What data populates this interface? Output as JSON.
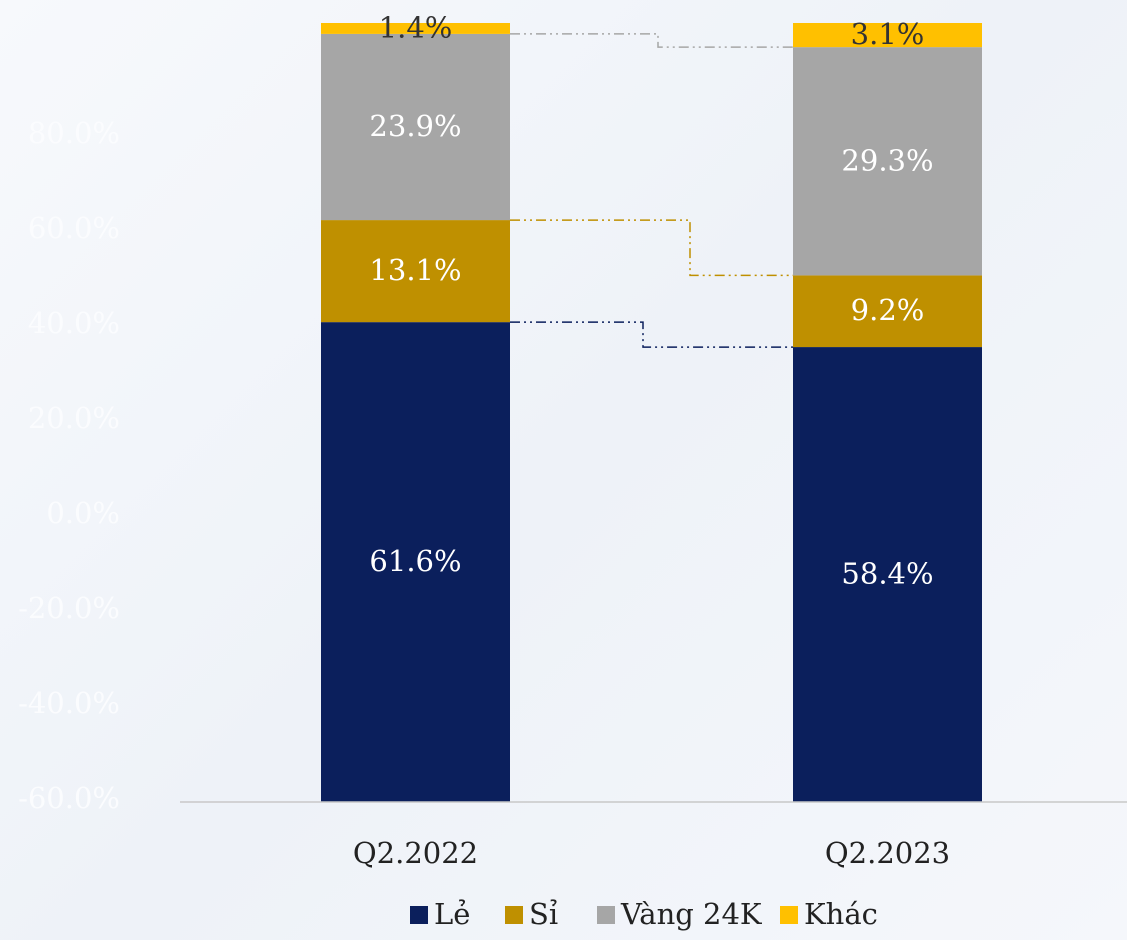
{
  "chart_data": {
    "type": "stacked_bar",
    "categories": [
      "Q2.2022",
      "Q2.2023"
    ],
    "series": [
      {
        "name": "Lẻ",
        "color": "#0b1f5c",
        "label_color": "#ffffff",
        "values": [
          61.6,
          58.4
        ],
        "value_labels": [
          "61.6%",
          "58.4%"
        ]
      },
      {
        "name": "Sỉ",
        "color": "#bf9000",
        "label_color": "#ffffff",
        "values": [
          13.1,
          9.2
        ],
        "value_labels": [
          "13.1%",
          "9.2%"
        ]
      },
      {
        "name": "Vàng 24K",
        "color": "#a6a6a6",
        "label_color": "#ffffff",
        "values": [
          23.9,
          29.3
        ],
        "value_labels": [
          "23.9%",
          "29.3%"
        ]
      },
      {
        "name": "Khác",
        "color": "#ffc000",
        "label_color": "#333333",
        "values": [
          1.4,
          3.1
        ],
        "value_labels": [
          "1.4%",
          "3.1%"
        ]
      }
    ],
    "ylim": [
      0,
      100
    ],
    "connectors": true,
    "legend": "bottom",
    "background_labels": [
      "80.0%",
      "60.0%",
      "40.0%",
      "20.0%",
      "0.0%",
      "-20.0%",
      "-40.0%",
      "-60.0%"
    ]
  }
}
